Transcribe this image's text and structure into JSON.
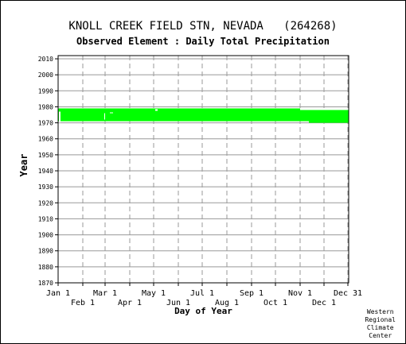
{
  "chart_data": {
    "type": "heatmap",
    "title": "KNOLL CREEK FIELD STN, NEVADA   (264268)",
    "subtitle": "Observed Element : Daily Total Precipitation",
    "xlabel": "Day of Year",
    "ylabel": "Year",
    "xlim": [
      1,
      366
    ],
    "ylim": [
      1870,
      2012
    ],
    "x_ticks_upper": [
      {
        "label": "Jan 1",
        "day": 1
      },
      {
        "label": "Mar 1",
        "day": 60
      },
      {
        "label": "May 1",
        "day": 121
      },
      {
        "label": "Jul 1",
        "day": 182
      },
      {
        "label": "Sep 1",
        "day": 244
      },
      {
        "label": "Nov 1",
        "day": 305
      },
      {
        "label": "Dec 31",
        "day": 365
      }
    ],
    "x_ticks_lower": [
      {
        "label": "Feb 1",
        "day": 32
      },
      {
        "label": "Apr 1",
        "day": 91
      },
      {
        "label": "Jun 1",
        "day": 152
      },
      {
        "label": "Aug 1",
        "day": 213
      },
      {
        "label": "Oct 1",
        "day": 274
      },
      {
        "label": "Dec 1",
        "day": 335
      }
    ],
    "y_ticks": [
      "1870",
      "1880",
      "1890",
      "1900",
      "1910",
      "1920",
      "1930",
      "1940",
      "1950",
      "1960",
      "1970",
      "1980",
      "1990",
      "2000",
      "2010"
    ],
    "grid": true,
    "series": [
      {
        "observed_periods": [
          {
            "day_start": 1,
            "day_end": 305,
            "year_start": 1971,
            "year_end": 1979
          },
          {
            "day_start": 305,
            "day_end": 316,
            "year_start": 1971,
            "year_end": 1978
          },
          {
            "day_start": 316,
            "day_end": 366,
            "year_start": 1970,
            "year_end": 1978
          }
        ]
      }
    ],
    "colors": {
      "data": "#00ff00",
      "gap": "#ffffff",
      "grid": "#999999",
      "axis": "#000000"
    }
  },
  "credit": [
    "Western",
    "Regional",
    "Climate",
    "Center"
  ]
}
